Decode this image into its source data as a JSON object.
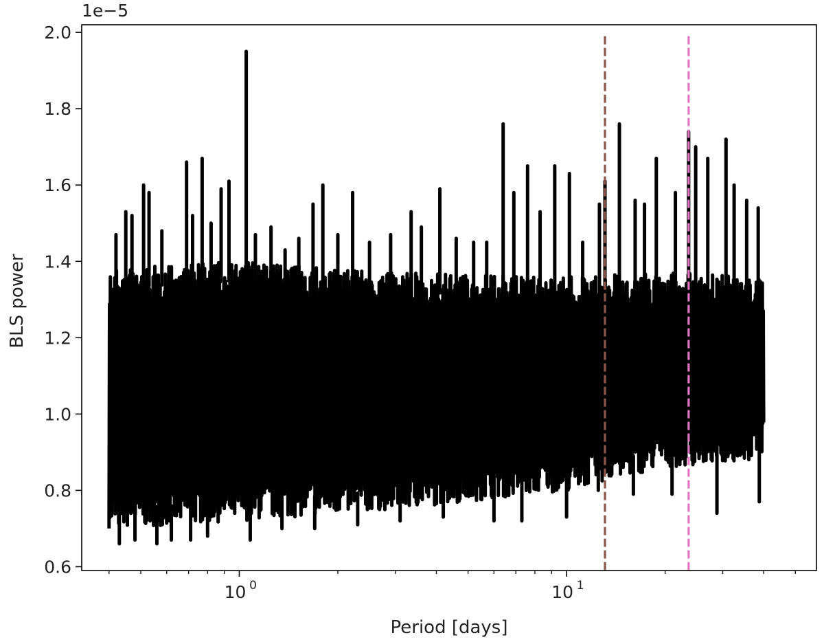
{
  "chart_data": {
    "type": "line",
    "title": "",
    "xlabel": "Period [days]",
    "ylabel": "BLS power",
    "x_scale": "log",
    "xlim": [
      0.33,
      58
    ],
    "ylim": [
      0.59,
      2.02
    ],
    "y_scale_label": "1e−5",
    "x_ticks": [
      {
        "value": 1,
        "label": "10",
        "exp": "0"
      },
      {
        "value": 10,
        "label": "10",
        "exp": "1"
      }
    ],
    "y_ticks": [
      {
        "value": 0.6,
        "label": "0.6"
      },
      {
        "value": 0.8,
        "label": "0.8"
      },
      {
        "value": 1.0,
        "label": "1.0"
      },
      {
        "value": 1.2,
        "label": "1.2"
      },
      {
        "value": 1.4,
        "label": "1.4"
      },
      {
        "value": 1.6,
        "label": "1.6"
      },
      {
        "value": 1.8,
        "label": "1.8"
      },
      {
        "value": 2.0,
        "label": "2.0"
      }
    ],
    "grid": false,
    "series": [
      {
        "color": "#000000",
        "x_range": [
          0.4,
          40
        ],
        "band_low": [
          [
            0.4,
            0.7
          ],
          [
            1.0,
            0.72
          ],
          [
            3.0,
            0.75
          ],
          [
            10.0,
            0.8
          ],
          [
            20.0,
            0.86
          ],
          [
            40.0,
            0.88
          ]
        ],
        "band_high": [
          [
            0.4,
            1.38
          ],
          [
            1.0,
            1.4
          ],
          [
            3.0,
            1.37
          ],
          [
            10.0,
            1.36
          ],
          [
            20.0,
            1.37
          ],
          [
            40.0,
            1.36
          ]
        ],
        "peaks": [
          {
            "x": 0.42,
            "y": 1.47
          },
          {
            "x": 0.45,
            "y": 1.53
          },
          {
            "x": 0.47,
            "y": 1.52
          },
          {
            "x": 0.51,
            "y": 1.6
          },
          {
            "x": 0.53,
            "y": 1.58
          },
          {
            "x": 0.58,
            "y": 1.48
          },
          {
            "x": 0.69,
            "y": 1.66
          },
          {
            "x": 0.72,
            "y": 1.52
          },
          {
            "x": 0.77,
            "y": 1.67
          },
          {
            "x": 0.82,
            "y": 1.5
          },
          {
            "x": 0.88,
            "y": 1.59
          },
          {
            "x": 0.93,
            "y": 1.61
          },
          {
            "x": 1.05,
            "y": 1.95
          },
          {
            "x": 1.12,
            "y": 1.47
          },
          {
            "x": 1.25,
            "y": 1.49
          },
          {
            "x": 1.38,
            "y": 1.43
          },
          {
            "x": 1.52,
            "y": 1.46
          },
          {
            "x": 1.68,
            "y": 1.55
          },
          {
            "x": 1.8,
            "y": 1.6
          },
          {
            "x": 2.0,
            "y": 1.47
          },
          {
            "x": 2.22,
            "y": 1.58
          },
          {
            "x": 2.5,
            "y": 1.45
          },
          {
            "x": 2.9,
            "y": 1.47
          },
          {
            "x": 3.35,
            "y": 1.53
          },
          {
            "x": 3.6,
            "y": 1.49
          },
          {
            "x": 4.1,
            "y": 1.59
          },
          {
            "x": 4.6,
            "y": 1.46
          },
          {
            "x": 5.2,
            "y": 1.45
          },
          {
            "x": 5.7,
            "y": 1.45
          },
          {
            "x": 6.4,
            "y": 1.76
          },
          {
            "x": 6.9,
            "y": 1.58
          },
          {
            "x": 7.6,
            "y": 1.65
          },
          {
            "x": 8.3,
            "y": 1.53
          },
          {
            "x": 9.2,
            "y": 1.65
          },
          {
            "x": 10.2,
            "y": 1.63
          },
          {
            "x": 11.2,
            "y": 1.45
          },
          {
            "x": 12.6,
            "y": 1.55
          },
          {
            "x": 13.1,
            "y": 1.61
          },
          {
            "x": 14.5,
            "y": 1.76
          },
          {
            "x": 16.2,
            "y": 1.56
          },
          {
            "x": 17.3,
            "y": 1.55
          },
          {
            "x": 18.8,
            "y": 1.67
          },
          {
            "x": 21.5,
            "y": 1.58
          },
          {
            "x": 23.6,
            "y": 1.74
          },
          {
            "x": 24.8,
            "y": 1.7
          },
          {
            "x": 27.0,
            "y": 1.67
          },
          {
            "x": 30.7,
            "y": 1.72
          },
          {
            "x": 32.5,
            "y": 1.6
          },
          {
            "x": 35.5,
            "y": 1.56
          },
          {
            "x": 38.5,
            "y": 1.54
          }
        ],
        "dips": [
          {
            "x": 0.43,
            "y": 0.66
          },
          {
            "x": 0.48,
            "y": 0.67
          },
          {
            "x": 0.56,
            "y": 0.66
          },
          {
            "x": 0.62,
            "y": 0.67
          },
          {
            "x": 0.71,
            "y": 0.67
          },
          {
            "x": 0.8,
            "y": 0.68
          },
          {
            "x": 1.08,
            "y": 0.67
          },
          {
            "x": 1.35,
            "y": 0.7
          },
          {
            "x": 1.7,
            "y": 0.7
          },
          {
            "x": 2.3,
            "y": 0.71
          },
          {
            "x": 3.1,
            "y": 0.72
          },
          {
            "x": 4.2,
            "y": 0.73
          },
          {
            "x": 6.0,
            "y": 0.72
          },
          {
            "x": 7.3,
            "y": 0.72
          },
          {
            "x": 10.0,
            "y": 0.73
          },
          {
            "x": 12.5,
            "y": 0.8
          },
          {
            "x": 16.0,
            "y": 0.79
          },
          {
            "x": 21.0,
            "y": 0.79
          },
          {
            "x": 28.8,
            "y": 0.74
          },
          {
            "x": 38.8,
            "y": 0.77
          }
        ]
      }
    ],
    "vlines": [
      {
        "x": 13.1,
        "color": "#8c564b",
        "style": "dashed"
      },
      {
        "x": 23.6,
        "color": "#e377c2",
        "style": "dashed"
      }
    ]
  }
}
